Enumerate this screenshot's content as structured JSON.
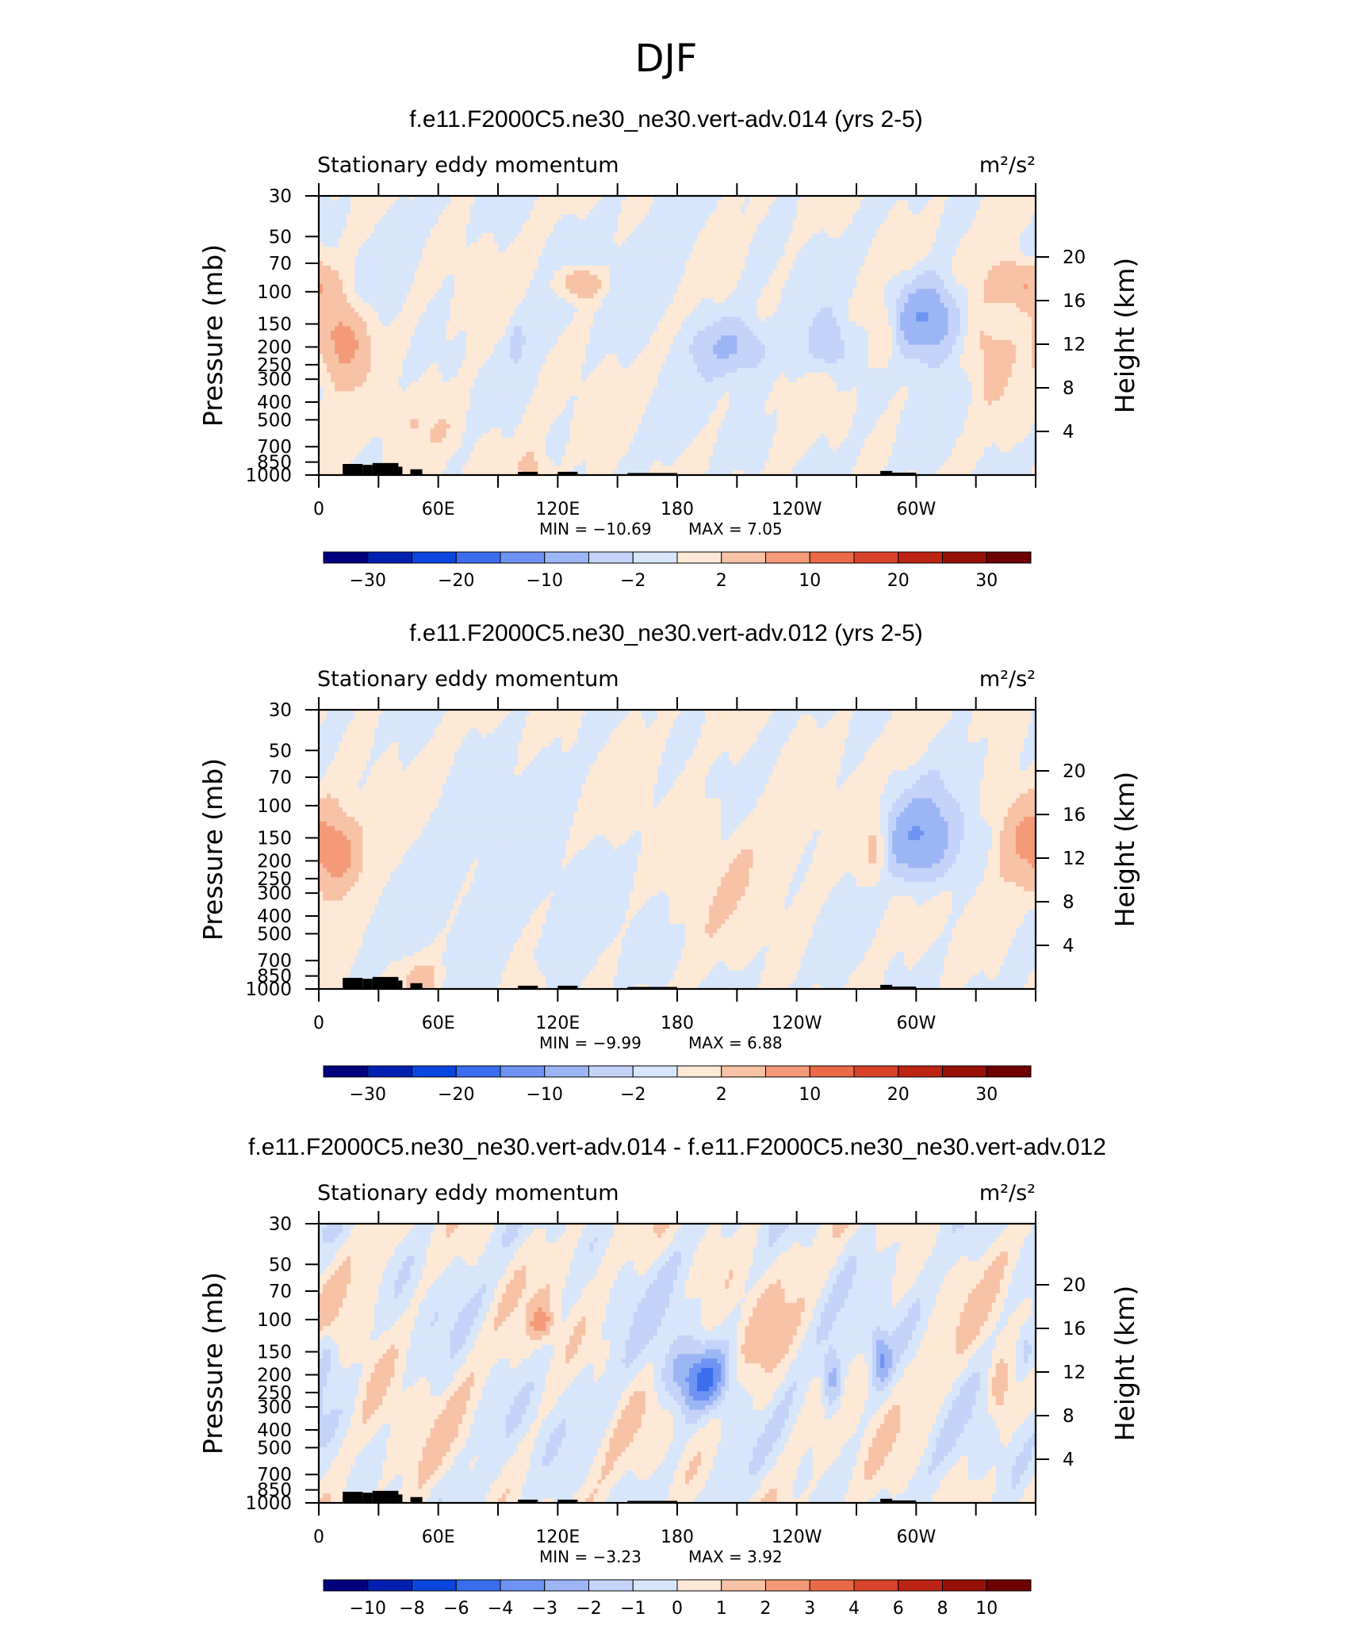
{
  "main_title": "DJF",
  "colors": {
    "neg": [
      "#00007f",
      "#0021b0",
      "#0a45e0",
      "#3a6eef",
      "#6f93f2",
      "#9cb6f5",
      "#c3d4f8",
      "#d8e6fb"
    ],
    "pos": [
      "#fde9d6",
      "#f7c2a6",
      "#f49a78",
      "#ea6a47",
      "#d9432a",
      "#bd2312",
      "#961006",
      "#6e0000"
    ],
    "land": "#000000"
  },
  "chart_data": [
    {
      "type": "heatmap",
      "title": "f.e11.F2000C5.ne30_ne30.vert-adv.014 (yrs 2-5)",
      "left_label": "Stationary eddy momentum",
      "right_label": "m²/s²",
      "ylabel": "Pressure (mb)",
      "ylabel_right": "Height (km)",
      "x_ticks": [
        "0",
        "60E",
        "120E",
        "180",
        "120W",
        "60W"
      ],
      "y_ticks": [
        "30",
        "50",
        "70",
        "100",
        "150",
        "200",
        "250",
        "300",
        "400",
        "500",
        "700",
        "850",
        "1000"
      ],
      "y_ticks_right": [
        "20",
        "16",
        "12",
        "8",
        "4"
      ],
      "min_text": "MIN = −10.69",
      "max_text": "MAX =  7.05",
      "min": -10.69,
      "max": 7.05,
      "colorbar_labels": [
        "−30",
        "−20",
        "−10",
        "−2",
        "2",
        "10",
        "20",
        "30"
      ],
      "features": [
        {
          "lon": 12,
          "p": 180,
          "v": 7.0,
          "slon": 12,
          "sz": 0.5
        },
        {
          "lon": 132,
          "p": 90,
          "v": 6.0,
          "slon": 10,
          "sz": 0.2
        },
        {
          "lon": 352,
          "p": 90,
          "v": 6.5,
          "slon": 14,
          "sz": 0.3
        },
        {
          "lon": 336,
          "p": 200,
          "v": 3.2,
          "slon": 12,
          "sz": 0.6
        },
        {
          "lon": 285,
          "p": 180,
          "v": 3.0,
          "slon": 7,
          "sz": 0.4
        },
        {
          "lon": 305,
          "p": 140,
          "v": -10.69,
          "slon": 15,
          "sz": 0.45
        },
        {
          "lon": 207,
          "p": 200,
          "v": -5.5,
          "slon": 17,
          "sz": 0.35
        },
        {
          "lon": 257,
          "p": 200,
          "v": -4.5,
          "slon": 10,
          "sz": 0.35
        },
        {
          "lon": 100,
          "p": 190,
          "v": -3.0,
          "slon": 4,
          "sz": 0.3
        },
        {
          "lon": 170,
          "p": 80,
          "v": -1.5,
          "slon": 25,
          "sz": 0.6
        },
        {
          "lon": 60,
          "p": 550,
          "v": 1.8,
          "slon": 25,
          "sz": 0.45
        },
        {
          "lon": 108,
          "p": 950,
          "v": 3.0,
          "slon": 8,
          "sz": 0.3
        }
      ]
    },
    {
      "type": "heatmap",
      "title": "f.e11.F2000C5.ne30_ne30.vert-adv.012 (yrs 2-5)",
      "left_label": "Stationary eddy momentum",
      "right_label": "m²/s²",
      "ylabel": "Pressure (mb)",
      "ylabel_right": "Height (km)",
      "x_ticks": [
        "0",
        "60E",
        "120E",
        "180",
        "120W",
        "60W"
      ],
      "y_ticks": [
        "30",
        "50",
        "70",
        "100",
        "150",
        "200",
        "250",
        "300",
        "400",
        "500",
        "700",
        "850",
        "1000"
      ],
      "y_ticks_right": [
        "20",
        "16",
        "12",
        "8",
        "4"
      ],
      "min_text": "MIN =  −9.99",
      "max_text": "MAX =  6.88",
      "min": -9.99,
      "max": 6.88,
      "colorbar_labels": [
        "−30",
        "−20",
        "−10",
        "−2",
        "2",
        "10",
        "20",
        "30"
      ],
      "features": [
        {
          "lon": 10,
          "p": 180,
          "v": 6.88,
          "slon": 12,
          "sz": 0.5
        },
        {
          "lon": 352,
          "p": 150,
          "v": 4.5,
          "slon": 13,
          "sz": 0.6
        },
        {
          "lon": 280,
          "p": 180,
          "v": 3.5,
          "slon": 7,
          "sz": 0.45
        },
        {
          "lon": 302,
          "p": 150,
          "v": -9.99,
          "slon": 17,
          "sz": 0.5
        },
        {
          "lon": 210,
          "p": 200,
          "v": 1.4,
          "slon": 45,
          "sz": 0.9
        },
        {
          "lon": 100,
          "p": 300,
          "v": -1.6,
          "slon": 40,
          "sz": 1.0
        },
        {
          "lon": 52,
          "p": 880,
          "v": 3.0,
          "slon": 10,
          "sz": 0.25
        },
        {
          "lon": 108,
          "p": 950,
          "v": 3.0,
          "slon": 6,
          "sz": 0.25
        }
      ]
    },
    {
      "type": "heatmap",
      "title": "f.e11.F2000C5.ne30_ne30.vert-adv.014 - f.e11.F2000C5.ne30_ne30.vert-adv.012",
      "left_label": "Stationary eddy momentum",
      "right_label": "m²/s²",
      "ylabel": "Pressure (mb)",
      "ylabel_right": "Height (km)",
      "x_ticks": [
        "0",
        "60E",
        "120E",
        "180",
        "120W",
        "60W"
      ],
      "y_ticks": [
        "30",
        "50",
        "70",
        "100",
        "150",
        "200",
        "250",
        "300",
        "400",
        "500",
        "700",
        "850",
        "1000"
      ],
      "y_ticks_right": [
        "20",
        "16",
        "12",
        "8",
        "4"
      ],
      "min_text": "MIN =  −3.23",
      "max_text": "MAX =   3.92",
      "min": -3.23,
      "max": 3.92,
      "colorbar_labels": [
        "−10",
        "−8",
        "−6",
        "−4",
        "−3",
        "−2",
        "−1",
        "0",
        "1",
        "2",
        "3",
        "4",
        "6",
        "8",
        "10"
      ],
      "features": [
        {
          "lon": 195,
          "p": 210,
          "v": -3.23,
          "slon": 14,
          "sz": 0.4
        },
        {
          "lon": 180,
          "p": 200,
          "v": -1.5,
          "slon": 14,
          "sz": 0.5
        },
        {
          "lon": 258,
          "p": 210,
          "v": -2.8,
          "slon": 5,
          "sz": 0.4
        },
        {
          "lon": 282,
          "p": 160,
          "v": -2.8,
          "slon": 5,
          "sz": 0.35
        },
        {
          "lon": 3,
          "p": 150,
          "v": -1.4,
          "slon": 4,
          "sz": 0.3
        },
        {
          "lon": 355,
          "p": 150,
          "v": -1.4,
          "slon": 4,
          "sz": 0.3
        },
        {
          "lon": 112,
          "p": 105,
          "v": 2.2,
          "slon": 6,
          "sz": 0.2
        },
        {
          "lon": 342,
          "p": 240,
          "v": 1.8,
          "slon": 5,
          "sz": 0.45
        },
        {
          "lon": 222,
          "p": 200,
          "v": 0.8,
          "slon": 14,
          "sz": 1.0
        },
        {
          "lon": 28,
          "p": 200,
          "v": 0.7,
          "slon": 12,
          "sz": 1.0
        }
      ]
    }
  ]
}
